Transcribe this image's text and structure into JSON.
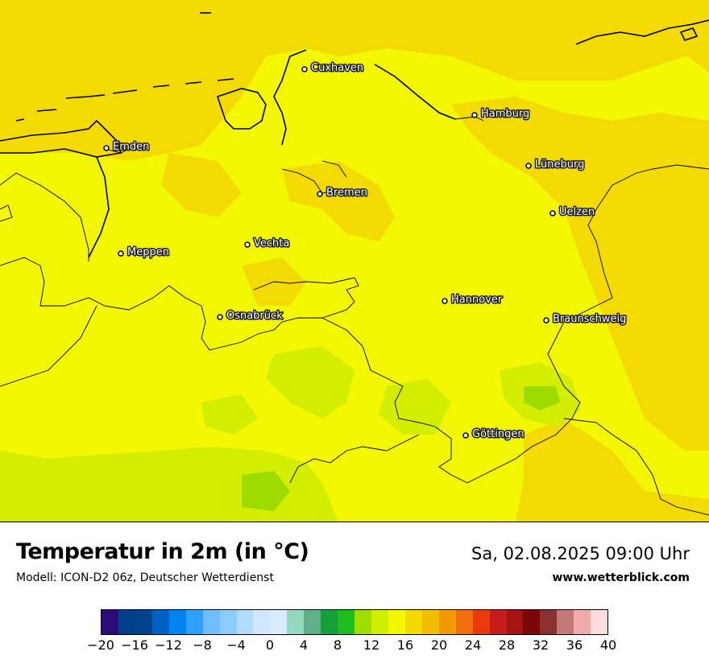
{
  "map": {
    "title": "Temperatur in 2m (in °C)",
    "model_line": "Modell: ICON-D2 06z, Deutscher Wetterdienst",
    "datetime": "Sa, 02.08.2025 09:00 Uhr",
    "website": "www.wetterblick.com",
    "cities": [
      "Cuxhaven",
      "Hamburg",
      "Emden",
      "Lüneburg",
      "Bremen",
      "Uelzen",
      "Vechta",
      "Meppen",
      "Hannover",
      "Osnabrück",
      "Braunschweig",
      "Göttingen"
    ]
  },
  "legend": {
    "unit": "°C",
    "min": -20,
    "max": 40,
    "step": 2,
    "tick_labels": [
      "−20",
      "−16",
      "−12",
      "−8",
      "−4",
      "0",
      "4",
      "8",
      "12",
      "16",
      "20",
      "24",
      "28",
      "32",
      "36",
      "40"
    ],
    "colors": [
      "#2b0a7a",
      "#003e8a",
      "#00428c",
      "#0061c4",
      "#0083f0",
      "#2ea1ff",
      "#6fbcff",
      "#8ecbff",
      "#b0dbff",
      "#cfe7ff",
      "#d9ecff",
      "#93d9c0",
      "#5fb08a",
      "#14a03b",
      "#1fbc1f",
      "#9fdc00",
      "#d1ee00",
      "#f3f700",
      "#f2d900",
      "#f3bd00",
      "#f29a00",
      "#f06e10",
      "#e83a0c",
      "#c51d1d",
      "#a51314",
      "#7a0606",
      "#8b3030",
      "#c57878",
      "#f0aaaa",
      "#fcdcdc"
    ]
  }
}
